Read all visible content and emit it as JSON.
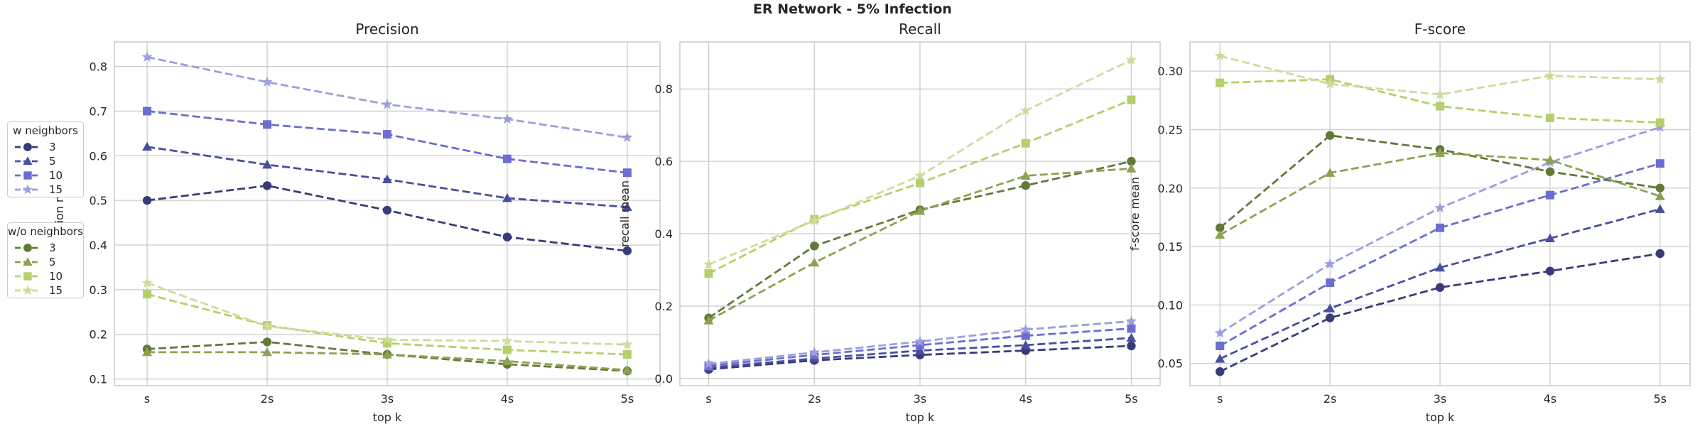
{
  "figure": {
    "suptitle": "ER Network - 5% Infection"
  },
  "colors": {
    "grid": "#cccccc",
    "frame": "#cccccc",
    "series": {
      "w_3": "#393b79",
      "w_5": "#494f9e",
      "w_10": "#6b6ecf",
      "w_15": "#9c9ede",
      "wo_3": "#637939",
      "wo_5": "#8ca252",
      "wo_10": "#b5cf6b",
      "wo_15": "#cedb9c"
    }
  },
  "legend": {
    "groups": [
      {
        "title": "w neighbors",
        "entries": [
          {
            "label": "3",
            "color": "#393b79",
            "marker": "circle"
          },
          {
            "label": "5",
            "color": "#494f9e",
            "marker": "triangle"
          },
          {
            "label": "10",
            "color": "#6b6ecf",
            "marker": "square"
          },
          {
            "label": "15",
            "color": "#9c9ede",
            "marker": "star"
          }
        ]
      },
      {
        "title": "w/o neighbors",
        "entries": [
          {
            "label": "3",
            "color": "#637939",
            "marker": "circle"
          },
          {
            "label": "5",
            "color": "#8ca252",
            "marker": "triangle"
          },
          {
            "label": "10",
            "color": "#b5cf6b",
            "marker": "square"
          },
          {
            "label": "15",
            "color": "#cedb9c",
            "marker": "star"
          }
        ]
      }
    ]
  },
  "chart_data": [
    {
      "type": "line",
      "title": "Precision",
      "xlabel": "top k",
      "ylabel": "precision mean",
      "categories": [
        "s",
        "2s",
        "3s",
        "4s",
        "5s"
      ],
      "ylim": [
        0.085,
        0.855
      ],
      "yticks": [
        0.1,
        0.2,
        0.3,
        0.4,
        0.5,
        0.6,
        0.7,
        0.8
      ],
      "ytick_labels": [
        "0.1",
        "0.2",
        "0.3",
        "0.4",
        "0.5",
        "0.6",
        "0.7",
        "0.8"
      ],
      "grid": true,
      "series": [
        {
          "key": "w_3",
          "values": [
            0.5,
            0.533,
            0.478,
            0.418,
            0.387
          ],
          "marker": "circle"
        },
        {
          "key": "w_5",
          "values": [
            0.62,
            0.58,
            0.547,
            0.505,
            0.485
          ],
          "marker": "triangle"
        },
        {
          "key": "w_10",
          "values": [
            0.7,
            0.67,
            0.648,
            0.593,
            0.562
          ],
          "marker": "square"
        },
        {
          "key": "w_15",
          "values": [
            0.821,
            0.765,
            0.715,
            0.682,
            0.641
          ],
          "marker": "star"
        },
        {
          "key": "wo_3",
          "values": [
            0.167,
            0.183,
            0.155,
            0.133,
            0.118
          ],
          "marker": "circle"
        },
        {
          "key": "wo_5",
          "values": [
            0.16,
            0.16,
            0.155,
            0.14,
            0.12
          ],
          "marker": "triangle"
        },
        {
          "key": "wo_10",
          "values": [
            0.29,
            0.22,
            0.18,
            0.165,
            0.155
          ],
          "marker": "square"
        },
        {
          "key": "wo_15",
          "values": [
            0.315,
            0.218,
            0.188,
            0.185,
            0.177
          ],
          "marker": "star"
        }
      ]
    },
    {
      "type": "line",
      "title": "Recall",
      "xlabel": "top k",
      "ylabel": "recall mean",
      "categories": [
        "s",
        "2s",
        "3s",
        "4s",
        "5s"
      ],
      "ylim": [
        -0.02,
        0.93
      ],
      "yticks": [
        0.0,
        0.2,
        0.4,
        0.6,
        0.8
      ],
      "ytick_labels": [
        "0.0",
        "0.2",
        "0.4",
        "0.6",
        "0.8"
      ],
      "grid": true,
      "series": [
        {
          "key": "w_3",
          "values": [
            0.025,
            0.05,
            0.065,
            0.077,
            0.09
          ],
          "marker": "circle"
        },
        {
          "key": "w_5",
          "values": [
            0.03,
            0.055,
            0.077,
            0.092,
            0.112
          ],
          "marker": "triangle"
        },
        {
          "key": "w_10",
          "values": [
            0.035,
            0.065,
            0.092,
            0.118,
            0.138
          ],
          "marker": "square"
        },
        {
          "key": "w_15",
          "values": [
            0.04,
            0.072,
            0.102,
            0.135,
            0.158
          ],
          "marker": "star"
        },
        {
          "key": "wo_3",
          "values": [
            0.167,
            0.366,
            0.466,
            0.533,
            0.6
          ],
          "marker": "circle"
        },
        {
          "key": "wo_5",
          "values": [
            0.16,
            0.32,
            0.463,
            0.56,
            0.58
          ],
          "marker": "triangle"
        },
        {
          "key": "wo_10",
          "values": [
            0.29,
            0.44,
            0.54,
            0.65,
            0.77
          ],
          "marker": "square"
        },
        {
          "key": "wo_15",
          "values": [
            0.315,
            0.436,
            0.56,
            0.74,
            0.88
          ],
          "marker": "star"
        }
      ]
    },
    {
      "type": "line",
      "title": "F-score",
      "xlabel": "top k",
      "ylabel": "f-score mean",
      "categories": [
        "s",
        "2s",
        "3s",
        "4s",
        "5s"
      ],
      "ylim": [
        0.031,
        0.325
      ],
      "yticks": [
        0.05,
        0.1,
        0.15,
        0.2,
        0.25,
        0.3
      ],
      "ytick_labels": [
        "0.05",
        "0.10",
        "0.15",
        "0.20",
        "0.25",
        "0.30"
      ],
      "grid": true,
      "series": [
        {
          "key": "w_3",
          "values": [
            0.043,
            0.089,
            0.115,
            0.129,
            0.144
          ],
          "marker": "circle"
        },
        {
          "key": "w_5",
          "values": [
            0.054,
            0.097,
            0.132,
            0.157,
            0.182
          ],
          "marker": "triangle"
        },
        {
          "key": "w_10",
          "values": [
            0.065,
            0.119,
            0.166,
            0.194,
            0.221
          ],
          "marker": "square"
        },
        {
          "key": "w_15",
          "values": [
            0.076,
            0.135,
            0.183,
            0.222,
            0.252
          ],
          "marker": "star"
        },
        {
          "key": "wo_3",
          "values": [
            0.166,
            0.245,
            0.233,
            0.214,
            0.2
          ],
          "marker": "circle"
        },
        {
          "key": "wo_5",
          "values": [
            0.16,
            0.213,
            0.23,
            0.224,
            0.193
          ],
          "marker": "triangle"
        },
        {
          "key": "wo_10",
          "values": [
            0.29,
            0.293,
            0.27,
            0.26,
            0.256
          ],
          "marker": "square"
        },
        {
          "key": "wo_15",
          "values": [
            0.313,
            0.289,
            0.28,
            0.296,
            0.293
          ],
          "marker": "star"
        }
      ]
    }
  ]
}
